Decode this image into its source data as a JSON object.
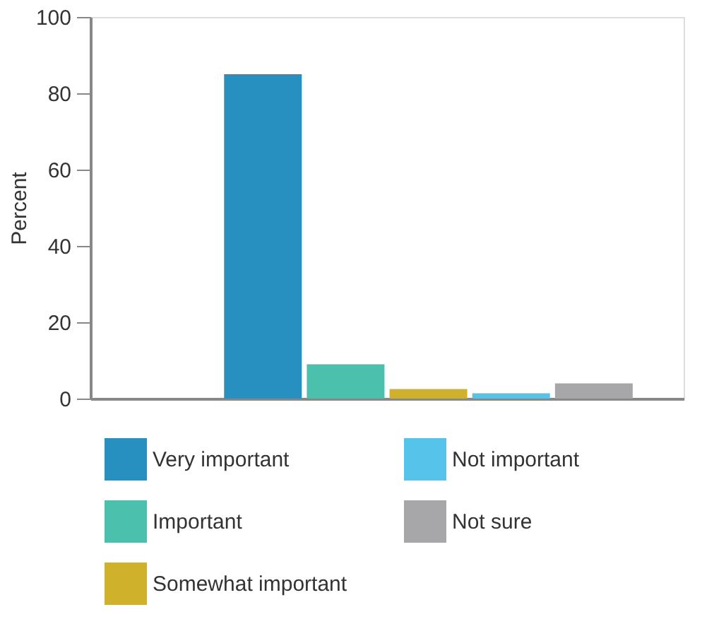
{
  "chart_data": {
    "type": "bar",
    "ylabel": "Percent",
    "categories": [
      null
    ],
    "series": [
      {
        "name": "Very important",
        "color": "#2890c0",
        "values": [
          85
        ]
      },
      {
        "name": "Important",
        "color": "#4bc0ad",
        "values": [
          9
        ]
      },
      {
        "name": "Somewhat important",
        "color": "#cfb12b",
        "values": [
          2.5
        ]
      },
      {
        "name": "Not important",
        "color": "#56c3ea",
        "values": [
          1.4
        ]
      },
      {
        "name": "Not sure",
        "color": "#a7a7a9",
        "values": [
          4
        ]
      }
    ],
    "ylim": [
      0,
      100
    ],
    "yticks": [
      0,
      20,
      40,
      60,
      80,
      100
    ],
    "grid": false,
    "legend": "bottom",
    "tick_labels": "y"
  }
}
